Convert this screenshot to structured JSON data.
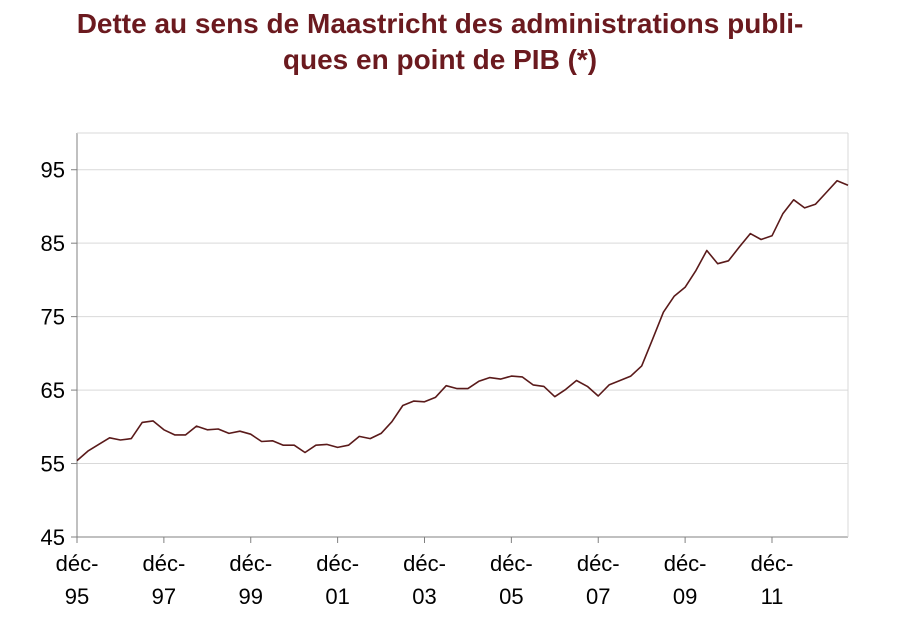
{
  "title_lines": [
    "Dette au sens de Maastricht des administrations publi-",
    "ques en point de PIB (*)"
  ],
  "colors": {
    "title": "#6b1a1f",
    "line": "#5a1a1a",
    "grid": "#d9d9d9",
    "axis": "#808080"
  },
  "chart_data": {
    "type": "line",
    "title": "Dette au sens de Maastricht des administrations publiques en point de PIB (*)",
    "xlabel": "",
    "ylabel": "",
    "frequency": "quarterly",
    "start": "déc-95",
    "ylim": [
      45,
      100
    ],
    "yticks": [
      45,
      55,
      65,
      75,
      85,
      95
    ],
    "xtick_labels": [
      [
        "déc-",
        "95"
      ],
      [
        "déc-",
        "97"
      ],
      [
        "déc-",
        "99"
      ],
      [
        "déc-",
        "01"
      ],
      [
        "déc-",
        "03"
      ],
      [
        "déc-",
        "05"
      ],
      [
        "déc-",
        "07"
      ],
      [
        "déc-",
        "09"
      ],
      [
        "déc-",
        "11"
      ]
    ],
    "grid": true,
    "legend": "none",
    "series": [
      {
        "values": [
          55.4,
          56.7,
          57.6,
          58.5,
          58.2,
          58.4,
          60.6,
          60.8,
          59.6,
          58.9,
          58.9,
          60.1,
          59.6,
          59.7,
          59.1,
          59.4,
          59.0,
          58.0,
          58.1,
          57.5,
          57.5,
          56.5,
          57.5,
          57.6,
          57.2,
          57.5,
          58.7,
          58.4,
          59.1,
          60.7,
          62.9,
          63.5,
          63.4,
          64.0,
          65.6,
          65.2,
          65.2,
          66.2,
          66.7,
          66.5,
          66.9,
          66.8,
          65.7,
          65.5,
          64.1,
          65.1,
          66.3,
          65.5,
          64.2,
          65.7,
          66.3,
          66.9,
          68.3,
          71.9,
          75.6,
          77.8,
          79.0,
          81.3,
          84.0,
          82.2,
          82.6,
          84.5,
          86.3,
          85.5,
          86.0,
          89.0,
          90.9,
          89.8,
          90.3,
          91.9,
          93.5,
          92.9
        ]
      }
    ]
  }
}
